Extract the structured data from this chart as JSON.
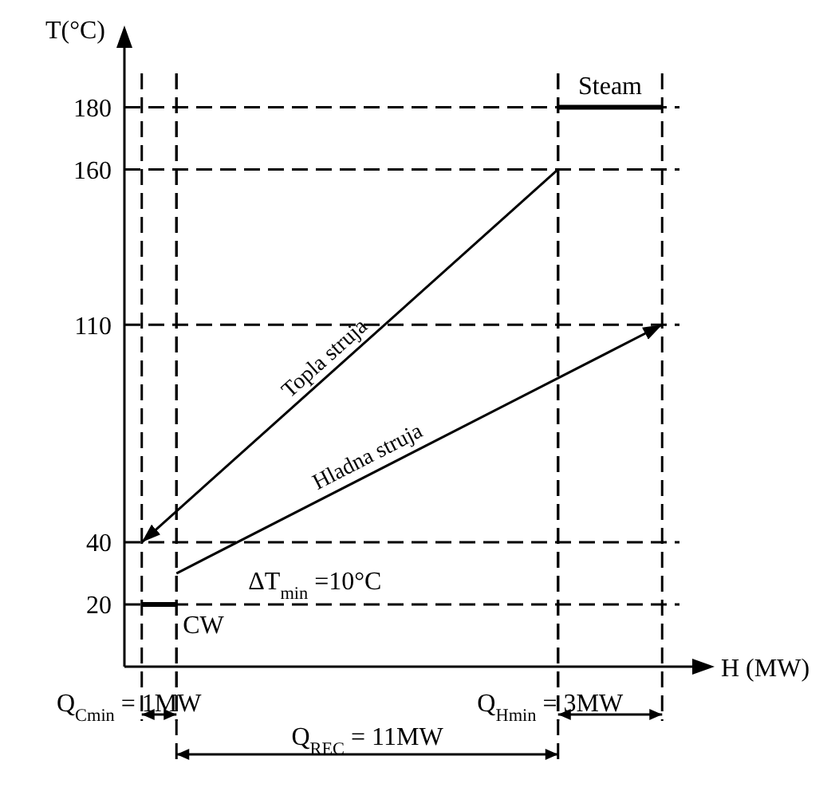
{
  "chart_data": {
    "type": "line",
    "xlabel": "H (MW)",
    "ylabel": "T(°C)",
    "ylim": [
      0,
      195
    ],
    "yticks": [
      20,
      40,
      110,
      160,
      180
    ],
    "tick_labels": "y",
    "marker": "none",
    "categories": [
      null,
      null,
      null,
      null,
      null,
      null,
      null,
      null,
      null,
      null,
      null,
      null,
      null,
      null,
      null,
      null
    ],
    "series": [
      {
        "name": "Topla struja",
        "color": "#000000",
        "values": [
          40,
          null,
          null,
          null,
          null,
          null,
          null,
          null,
          null,
          null,
          null,
          null,
          160,
          null,
          null,
          null
        ]
      },
      {
        "name": "Hladna struja",
        "color": "#000000",
        "values": [
          null,
          30,
          null,
          null,
          null,
          null,
          null,
          null,
          null,
          null,
          null,
          null,
          null,
          null,
          null,
          110
        ]
      },
      {
        "name": "Steam",
        "color": "#000000",
        "values": [
          null,
          null,
          null,
          null,
          null,
          null,
          null,
          null,
          null,
          null,
          null,
          null,
          180,
          null,
          null,
          180
        ]
      },
      {
        "name": "CW",
        "color": "#000000",
        "values": [
          20,
          20,
          null,
          null,
          null,
          null,
          null,
          null,
          null,
          null,
          null,
          null,
          null,
          null,
          null,
          null
        ]
      }
    ],
    "ref_lines": [
      {
        "axis": "y",
        "value": 180,
        "line_style": "dashed",
        "color": "#000000"
      },
      {
        "axis": "y",
        "value": 160,
        "line_style": "dashed",
        "color": "#000000"
      },
      {
        "axis": "y",
        "value": 110,
        "line_style": "dashed",
        "color": "#000000"
      },
      {
        "axis": "y",
        "value": 40,
        "line_style": "dashed",
        "color": "#000000"
      },
      {
        "axis": "y",
        "value": 20,
        "line_style": "dashed",
        "color": "#000000"
      }
    ],
    "annotations": [
      "ΔT$_{min}$ =10°C",
      "Q$_{Cmin}$ = 1MW",
      "Q$_{Hmin}$ = 3MW",
      "Q$_{REC}$ = 11MW"
    ]
  }
}
